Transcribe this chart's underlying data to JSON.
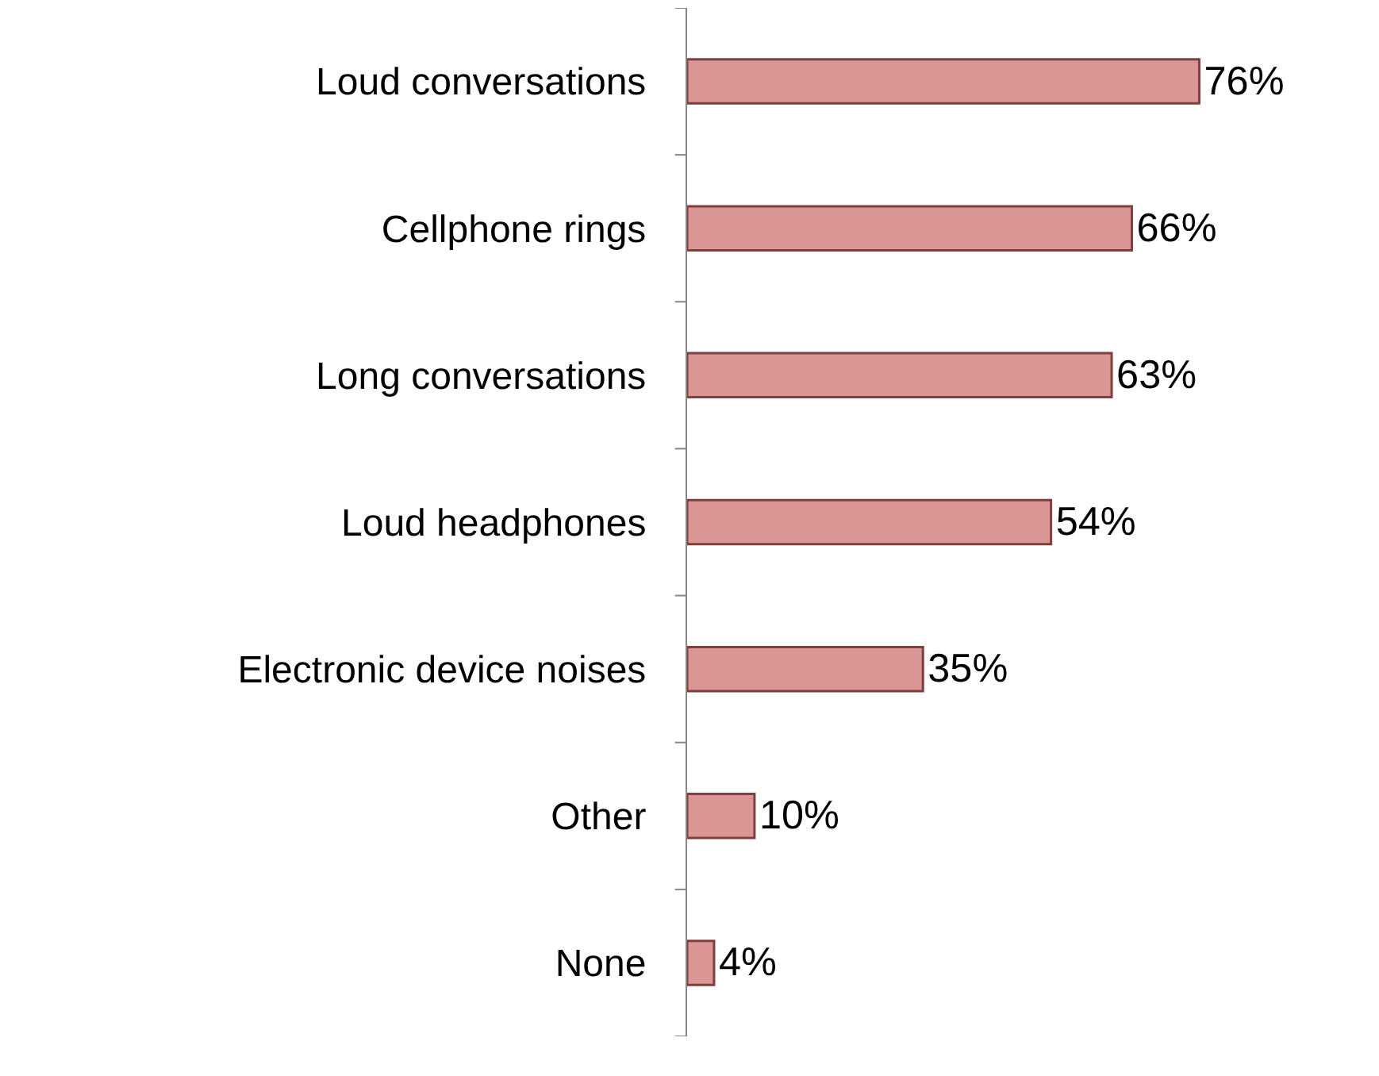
{
  "chart_data": {
    "type": "bar",
    "orientation": "horizontal",
    "categories": [
      "Loud conversations",
      "Cellphone rings",
      "Long conversations",
      "Loud headphones",
      "Electronic device noises",
      "Other",
      "None"
    ],
    "values": [
      76,
      66,
      63,
      54,
      35,
      10,
      4
    ],
    "value_labels": [
      "76%",
      "66%",
      "63%",
      "54%",
      "35%",
      "10%",
      "4%"
    ],
    "color": "#d99694"
  }
}
